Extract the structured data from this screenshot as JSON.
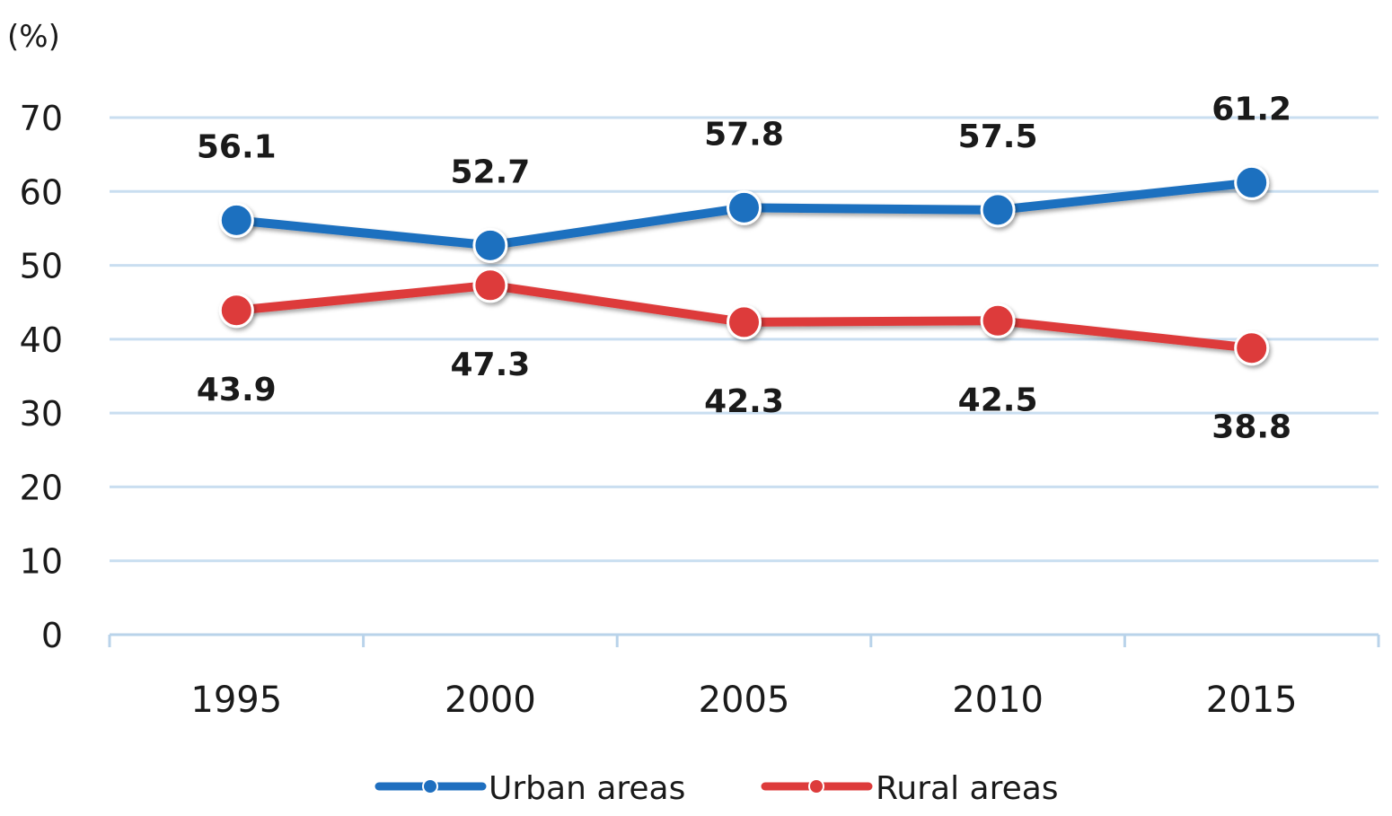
{
  "chart_data": {
    "type": "line",
    "title": "",
    "unit_label": "(%)",
    "xlabel": "",
    "ylabel": "(%)",
    "categories": [
      "1995",
      "2000",
      "2005",
      "2010",
      "2015"
    ],
    "yticks": [
      "0",
      "10",
      "20",
      "30",
      "40",
      "50",
      "60",
      "70"
    ],
    "ylim": [
      0,
      70
    ],
    "grid": true,
    "legend_position": "bottom",
    "series": [
      {
        "name": "Urban areas",
        "color": "#1f6fbf",
        "values": [
          56.1,
          52.7,
          57.8,
          57.5,
          61.2
        ],
        "labels": [
          "56.1",
          "52.7",
          "57.8",
          "57.5",
          "61.2"
        ],
        "label_position": "above"
      },
      {
        "name": "Rural areas",
        "color": "#dd3b3b",
        "values": [
          43.9,
          47.3,
          42.3,
          42.5,
          38.8
        ],
        "labels": [
          "43.9",
          "47.3",
          "42.3",
          "42.5",
          "38.8"
        ],
        "label_position": "below"
      }
    ]
  }
}
